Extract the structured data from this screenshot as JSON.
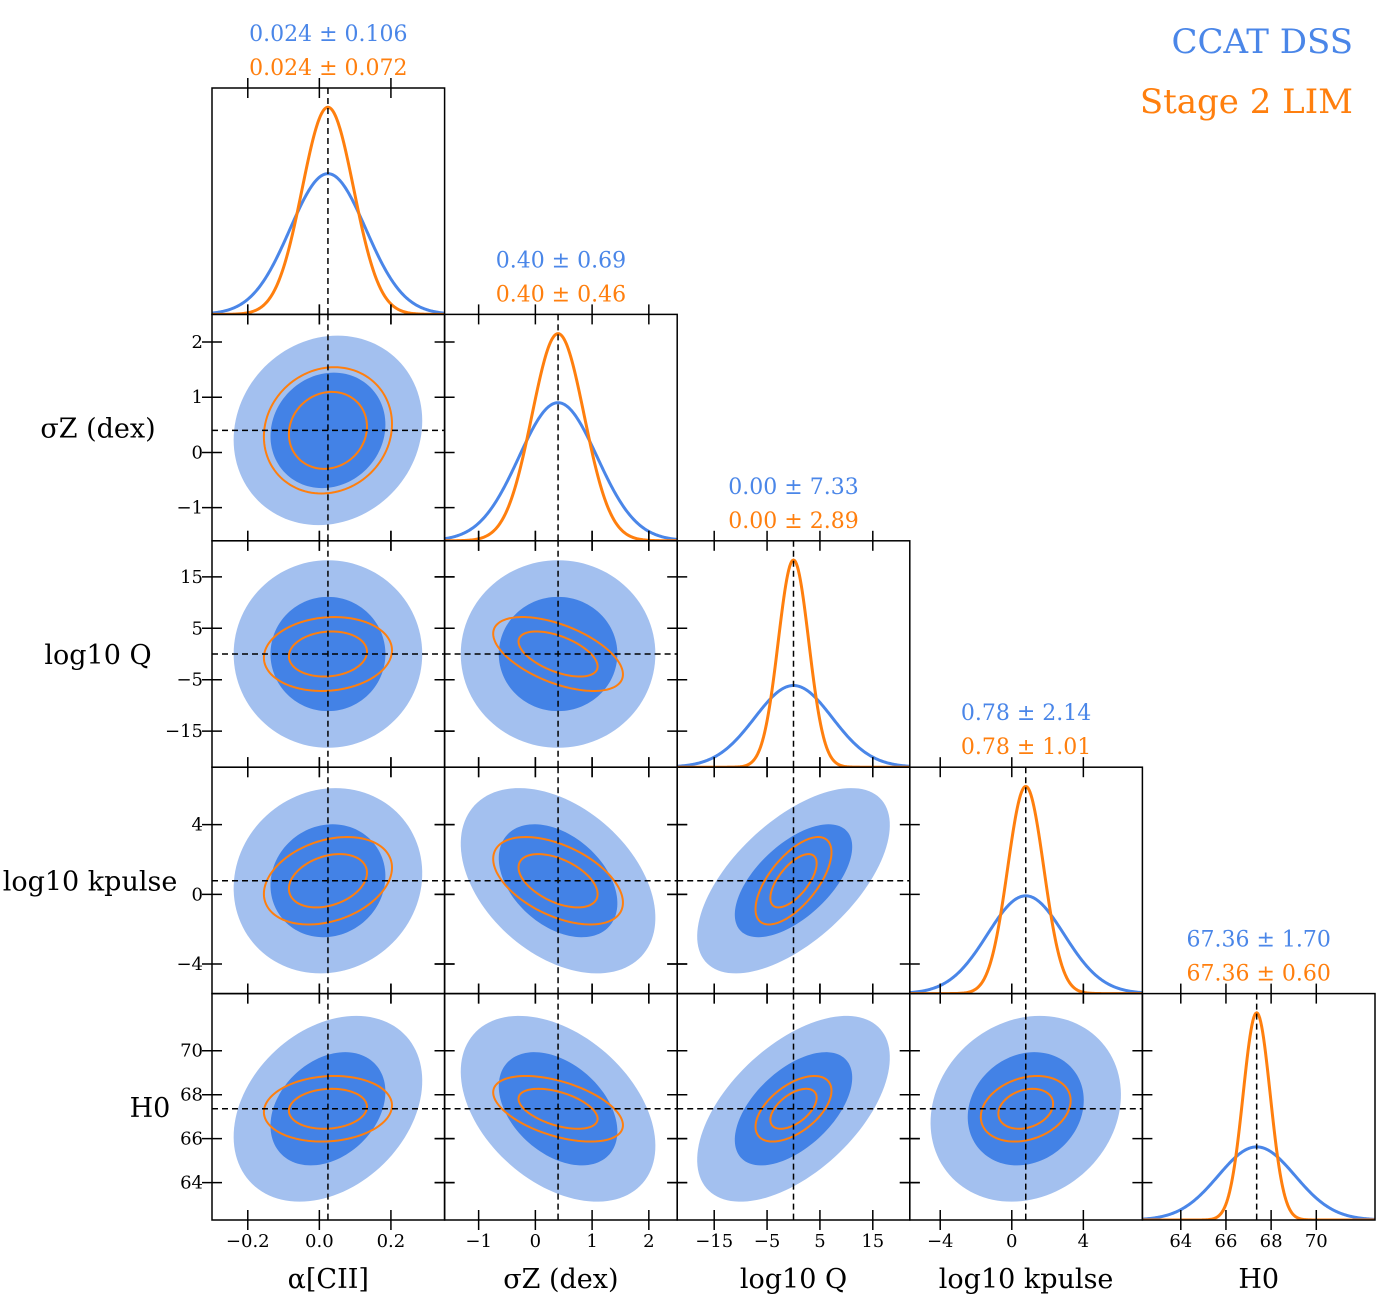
{
  "chart_data": {
    "type": "corner",
    "title": "",
    "legend": {
      "placement": "top-right",
      "entries": [
        {
          "name": "CCAT DSS",
          "color": "#4a86e8"
        },
        {
          "name": "Stage 2 LIM",
          "color": "#ff7f0e"
        }
      ]
    },
    "colors": {
      "ccat_line": "#4a86e8",
      "ccat_fill_inner": "#4382e6",
      "ccat_fill_outer": "#a3c0ef",
      "stage2": "#ff7f0e",
      "truth_line": "#000000"
    },
    "series": [
      {
        "name": "CCAT DSS",
        "sigmas": [
          0.106,
          0.69,
          7.33,
          2.14,
          1.7
        ]
      },
      {
        "name": "Stage 2 LIM",
        "sigmas": [
          0.072,
          0.46,
          2.89,
          1.01,
          0.6
        ]
      }
    ],
    "correlations": {
      "CCAT DSS": [
        [
          0.0,
          0.0,
          0.0,
          0.0,
          0.0
        ],
        [
          0.1,
          0.0,
          0.0,
          0.0,
          0.0
        ],
        [
          0.0,
          0.0,
          0.0,
          0.0,
          0.0
        ],
        [
          0.08,
          -0.4,
          0.6,
          0.0,
          0.0
        ],
        [
          0.3,
          -0.4,
          0.55,
          0.15,
          0.0
        ]
      ],
      "Stage 2 LIM": [
        [
          0.0,
          0.0,
          0.0,
          0.0,
          0.0
        ],
        [
          0.1,
          0.0,
          0.0,
          0.0,
          0.0
        ],
        [
          0.1,
          -0.55,
          0.0,
          0.0,
          0.0
        ],
        [
          0.3,
          -0.5,
          0.65,
          0.0,
          0.0
        ],
        [
          0.1,
          -0.5,
          0.55,
          0.25,
          0.0
        ]
      ]
    },
    "parameters": [
      {
        "label": "α[CII]",
        "diag_label": "α[CII]",
        "truth": 0.024,
        "range": [
          -0.3,
          0.35
        ],
        "ticks": [
          -0.2,
          0.0,
          0.2
        ],
        "tick_labels": [
          "−0.2",
          "0.0",
          "0.2"
        ],
        "summary": [
          "0.024 ± 0.106",
          "0.024 ± 0.072"
        ]
      },
      {
        "label": "σZ (dex)",
        "truth": 0.4,
        "range": [
          -1.6,
          2.5
        ],
        "ticks": [
          -1,
          0,
          1,
          2
        ],
        "tick_labels": [
          "−1",
          "0",
          "1",
          "2"
        ],
        "summary": [
          "0.40 ± 0.69",
          "0.40 ± 0.46"
        ]
      },
      {
        "label": "log10 Q",
        "truth": 0.0,
        "range": [
          -22,
          22
        ],
        "ticks": [
          -15,
          -5,
          5,
          15
        ],
        "tick_labels": [
          "−15",
          "−5",
          "5",
          "15"
        ],
        "summary": [
          "0.00 ± 7.33",
          "0.00 ± 2.89"
        ]
      },
      {
        "label": "log10 kpulse",
        "truth": 0.78,
        "range": [
          -5.7,
          7.3
        ],
        "ticks": [
          -4,
          0,
          4
        ],
        "tick_labels": [
          "−4",
          "0",
          "4"
        ],
        "summary": [
          "0.78 ± 2.14",
          "0.78 ± 1.01"
        ]
      },
      {
        "label": "H0",
        "truth": 67.36,
        "range": [
          62.3,
          72.6
        ],
        "ticks": [
          64,
          66,
          68,
          70
        ],
        "tick_labels": [
          "64",
          "66",
          "68",
          "70"
        ],
        "summary": [
          "67.36 ± 1.70",
          "67.36 ± 0.60"
        ]
      }
    ]
  }
}
